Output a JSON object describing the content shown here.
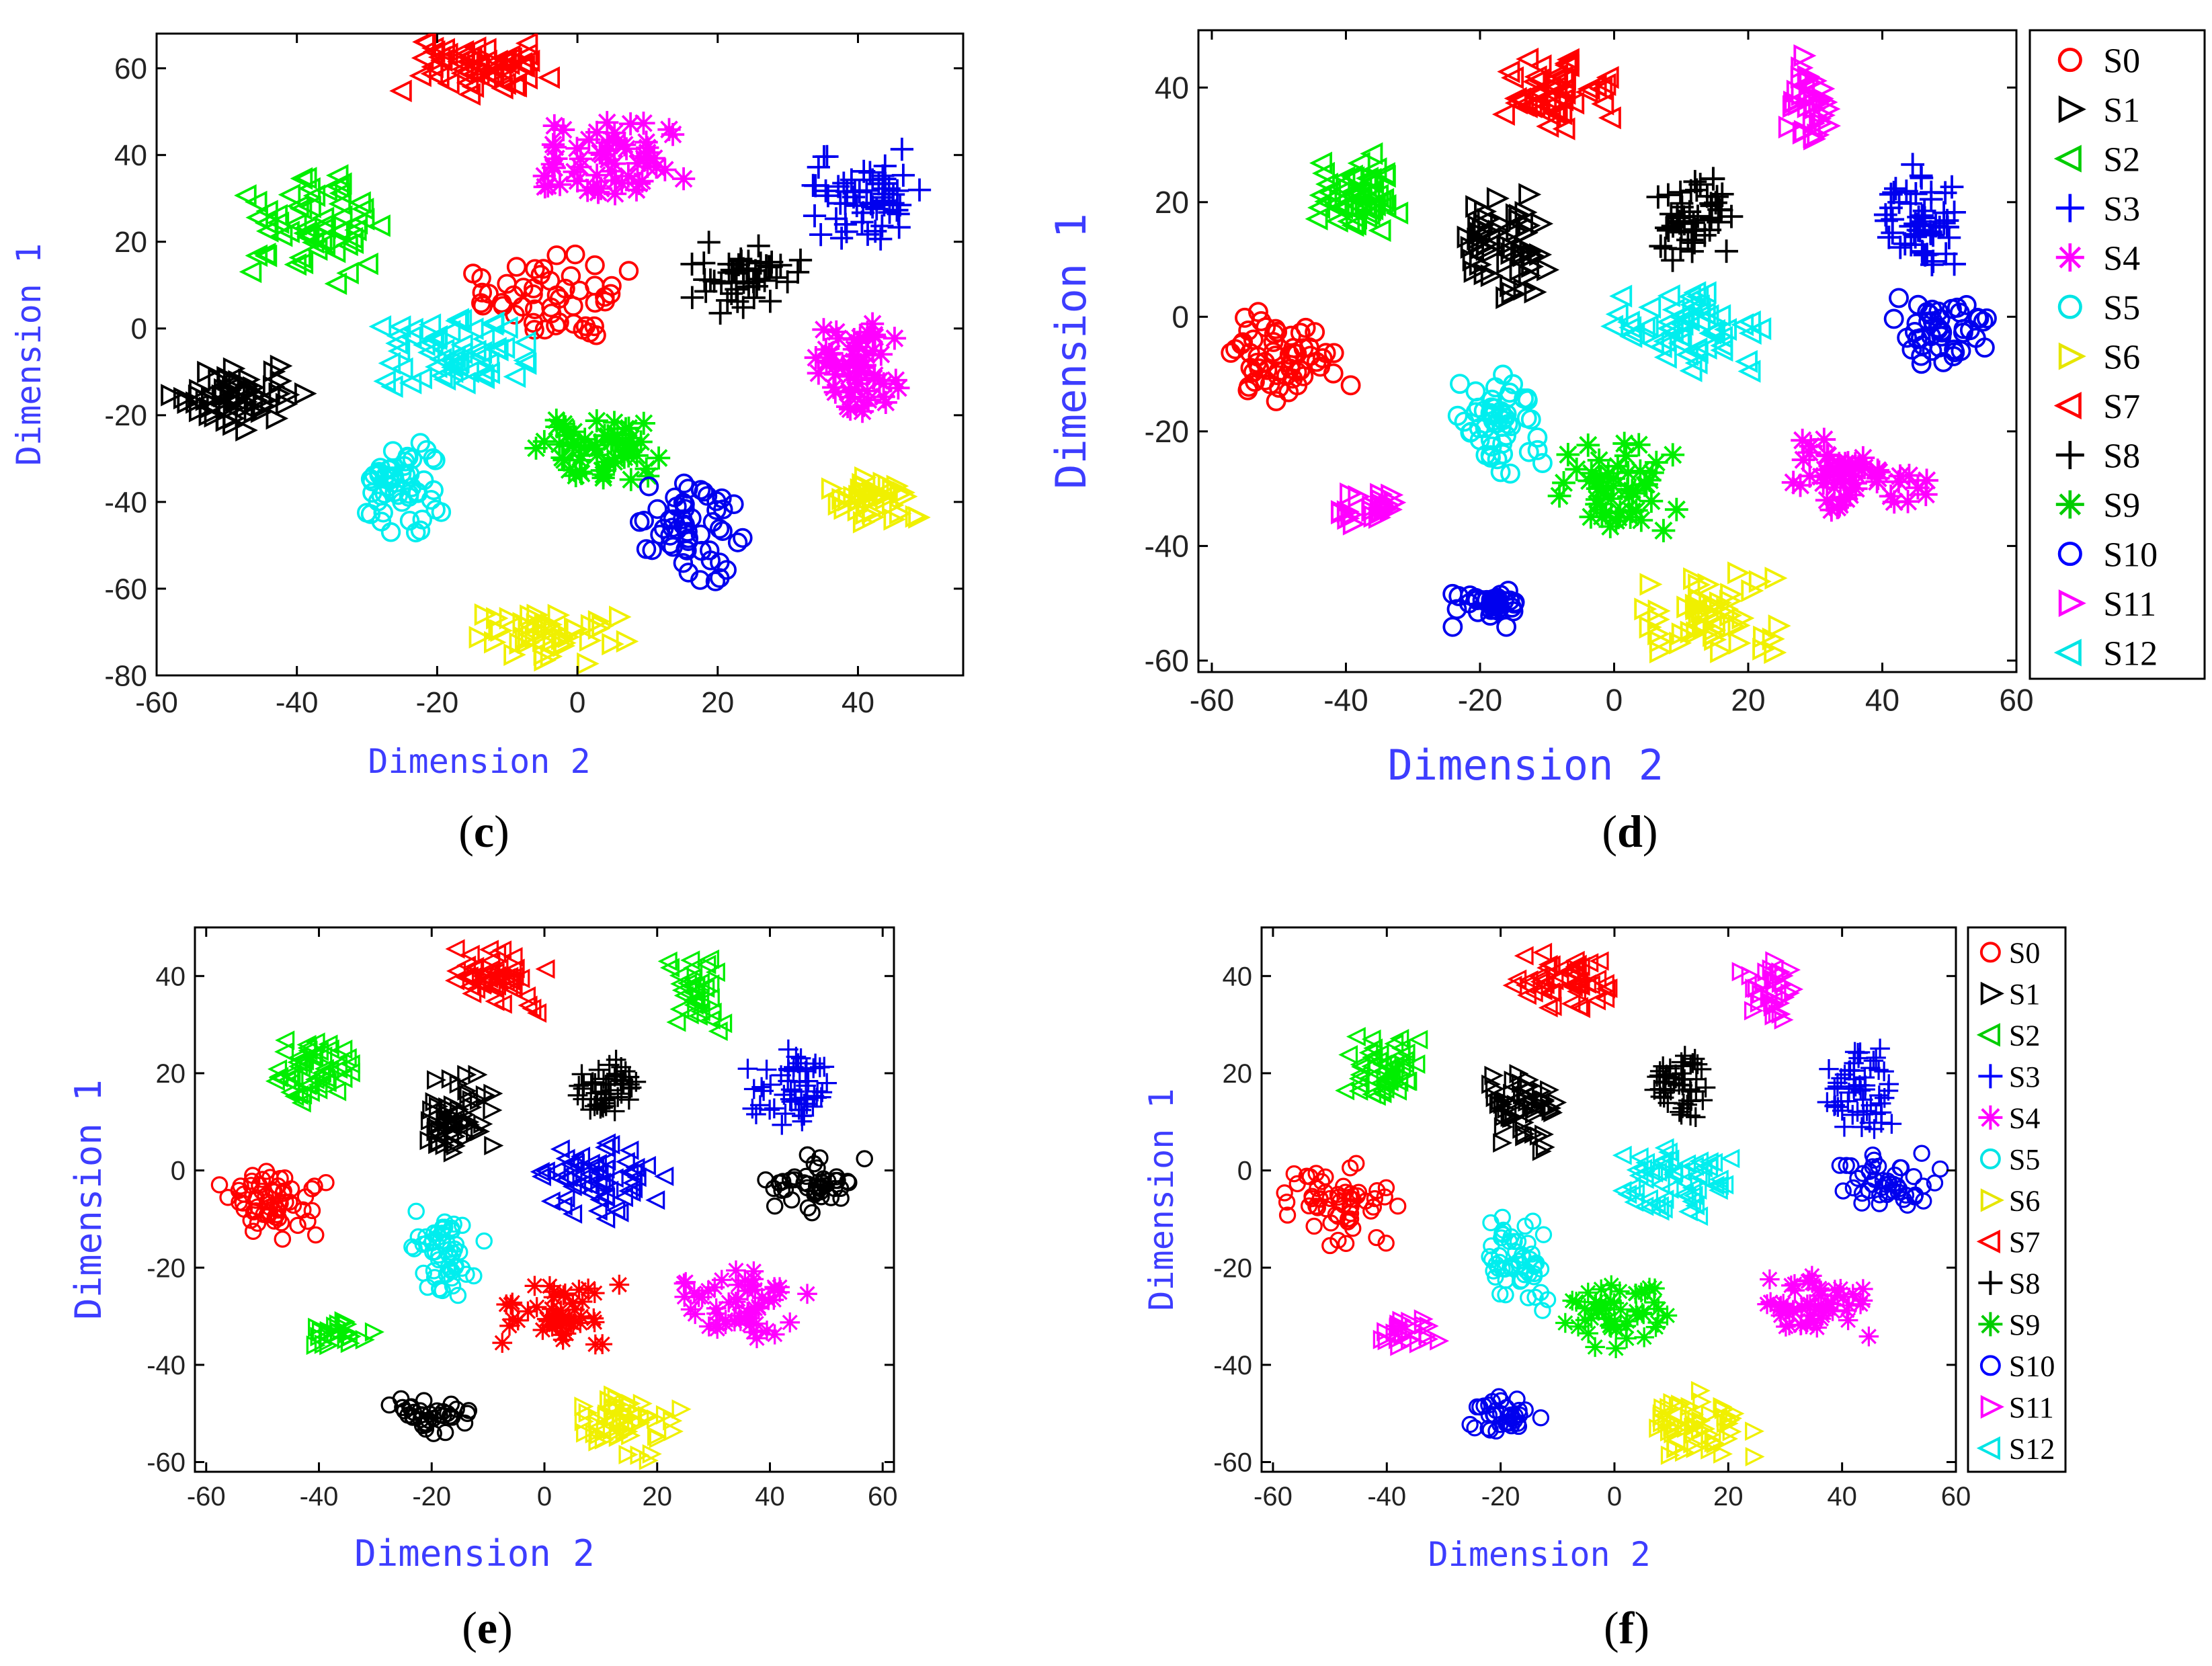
{
  "colors": {
    "red": "#ff0000",
    "black": "#000000",
    "green": "#00ee00",
    "blue": "#0000ee",
    "magenta": "#ff00ff",
    "cyan": "#00eeee",
    "yellow": "#f0f000"
  },
  "legend_entries": [
    {
      "label": "S0",
      "marker": "circle",
      "color": "#ff0000"
    },
    {
      "label": "S1",
      "marker": "triangle-right",
      "color": "#000000"
    },
    {
      "label": "S2",
      "marker": "triangle-left",
      "color": "#00cc00"
    },
    {
      "label": "S3",
      "marker": "plus",
      "color": "#0000ff"
    },
    {
      "label": "S4",
      "marker": "star",
      "color": "#ff00ff"
    },
    {
      "label": "S5",
      "marker": "circle",
      "color": "#00e5e5"
    },
    {
      "label": "S6",
      "marker": "triangle-right",
      "color": "#e6e600"
    },
    {
      "label": "S7",
      "marker": "triangle-left",
      "color": "#ff0000"
    },
    {
      "label": "S8",
      "marker": "plus",
      "color": "#000000"
    },
    {
      "label": "S9",
      "marker": "star",
      "color": "#00cc00"
    },
    {
      "label": "S10",
      "marker": "circle",
      "color": "#0000ff"
    },
    {
      "label": "S11",
      "marker": "triangle-right",
      "color": "#ff00ff"
    },
    {
      "label": "S12",
      "marker": "triangle-left",
      "color": "#00e5e5"
    }
  ],
  "chart_data": [
    {
      "panel": "c",
      "caption_letter": "c",
      "type": "scatter",
      "xlabel": "Dimension 2",
      "ylabel": "Dimension 1",
      "xlim": [
        -60,
        55
      ],
      "ylim": [
        -80,
        68
      ],
      "xticks": [
        -60,
        -40,
        -20,
        0,
        20,
        40
      ],
      "yticks": [
        60,
        40,
        20,
        0,
        -20,
        -40,
        -60,
        -80
      ],
      "legend": false,
      "clusters": [
        {
          "class": "S7",
          "marker": "triangle-left",
          "color": "red",
          "x": [
            -28,
            0
          ],
          "y": [
            53,
            67
          ],
          "n": 60
        },
        {
          "class": "S4",
          "marker": "star",
          "color": "magenta",
          "x": [
            -9,
            17
          ],
          "y": [
            28,
            50
          ],
          "n": 60
        },
        {
          "class": "S2",
          "marker": "triangle-left",
          "color": "green",
          "x": [
            -50,
            -27
          ],
          "y": [
            10,
            38
          ],
          "n": 60
        },
        {
          "class": "S3",
          "marker": "plus",
          "color": "blue",
          "x": [
            33,
            50
          ],
          "y": [
            18,
            43
          ],
          "n": 60
        },
        {
          "class": "S8",
          "marker": "plus",
          "color": "black",
          "x": [
            15,
            33
          ],
          "y": [
            2,
            22
          ],
          "n": 50
        },
        {
          "class": "S0",
          "marker": "circle",
          "color": "red",
          "x": [
            -16,
            8
          ],
          "y": [
            -3,
            19
          ],
          "n": 50
        },
        {
          "class": "S5",
          "marker": "triangle-left",
          "color": "cyan",
          "x": [
            -31,
            -6
          ],
          "y": [
            -15,
            5
          ],
          "n": 60
        },
        {
          "class": "S1",
          "marker": "triangle-right",
          "color": "black",
          "x": [
            -59,
            -38
          ],
          "y": [
            -24,
            -8
          ],
          "n": 60
        },
        {
          "class": "S4",
          "marker": "star",
          "color": "magenta",
          "x": [
            33,
            47
          ],
          "y": [
            -22,
            3
          ],
          "n": 55
        },
        {
          "class": "S5",
          "marker": "circle",
          "color": "cyan",
          "x": [
            -32,
            -18
          ],
          "y": [
            -49,
            -25
          ],
          "n": 55
        },
        {
          "class": "S9",
          "marker": "star",
          "color": "green",
          "x": [
            -8,
            12
          ],
          "y": [
            -37,
            -19
          ],
          "n": 55
        },
        {
          "class": "S10",
          "marker": "circle",
          "color": "blue",
          "x": [
            6,
            25
          ],
          "y": [
            -62,
            -32
          ],
          "n": 55
        },
        {
          "class": "S6",
          "marker": "triangle-right",
          "color": "yellow",
          "x": [
            35,
            49
          ],
          "y": [
            -45,
            -34
          ],
          "n": 40
        },
        {
          "class": "S6",
          "marker": "triangle-right",
          "color": "yellow",
          "x": [
            -15,
            8
          ],
          "y": [
            -78,
            -64
          ],
          "n": 45
        }
      ]
    },
    {
      "panel": "d",
      "caption_letter": "d",
      "type": "scatter",
      "xlabel": "Dimension 2",
      "ylabel": "Dimension 1",
      "xlim": [
        -62,
        60
      ],
      "ylim": [
        -62,
        50
      ],
      "xticks": [
        -60,
        -40,
        -20,
        0,
        20,
        40,
        60
      ],
      "yticks": [
        40,
        20,
        0,
        -20,
        -40,
        -60
      ],
      "legend": true,
      "clusters": [
        {
          "class": "S7",
          "marker": "triangle-left",
          "color": "red",
          "x": [
            -18,
            2
          ],
          "y": [
            32,
            46
          ],
          "n": 55
        },
        {
          "class": "S11",
          "marker": "triangle-right",
          "color": "magenta",
          "x": [
            25,
            33
          ],
          "y": [
            28,
            46
          ],
          "n": 35
        },
        {
          "class": "S2",
          "marker": "triangle-left",
          "color": "green",
          "x": [
            -45,
            -32
          ],
          "y": [
            13,
            29
          ],
          "n": 55
        },
        {
          "class": "S1",
          "marker": "triangle-right",
          "color": "black",
          "x": [
            -23,
            -8
          ],
          "y": [
            2,
            22
          ],
          "n": 55
        },
        {
          "class": "S8",
          "marker": "plus",
          "color": "black",
          "x": [
            6,
            18
          ],
          "y": [
            9,
            26
          ],
          "n": 50
        },
        {
          "class": "S3",
          "marker": "plus",
          "color": "blue",
          "x": [
            39,
            52
          ],
          "y": [
            8,
            27
          ],
          "n": 55
        },
        {
          "class": "S0",
          "marker": "circle",
          "color": "red",
          "x": [
            -60,
            -38
          ],
          "y": [
            -16,
            2
          ],
          "n": 60
        },
        {
          "class": "S12",
          "marker": "triangle-left",
          "color": "cyan",
          "x": [
            -2,
            25
          ],
          "y": [
            -11,
            6
          ],
          "n": 60
        },
        {
          "class": "S10",
          "marker": "circle",
          "color": "blue",
          "x": [
            39,
            58
          ],
          "y": [
            -9,
            4
          ],
          "n": 45
        },
        {
          "class": "S5",
          "marker": "circle",
          "color": "cyan",
          "x": [
            -24,
            -10
          ],
          "y": [
            -29,
            -8
          ],
          "n": 55
        },
        {
          "class": "S9",
          "marker": "star",
          "color": "green",
          "x": [
            -9,
            10
          ],
          "y": [
            -38,
            -21
          ],
          "n": 50
        },
        {
          "class": "S4",
          "marker": "star",
          "color": "magenta",
          "x": [
            25,
            47
          ],
          "y": [
            -35,
            -20
          ],
          "n": 55
        },
        {
          "class": "S11",
          "marker": "triangle-right",
          "color": "magenta",
          "x": [
            -42,
            -30
          ],
          "y": [
            -37,
            -30
          ],
          "n": 25
        },
        {
          "class": "S10",
          "marker": "circle",
          "color": "blue",
          "x": [
            -26,
            -12
          ],
          "y": [
            -55,
            -46
          ],
          "n": 35
        },
        {
          "class": "S6",
          "marker": "triangle-right",
          "color": "yellow",
          "x": [
            3,
            25
          ],
          "y": [
            -60,
            -44
          ],
          "n": 55
        }
      ]
    },
    {
      "panel": "e",
      "caption_letter": "e",
      "type": "scatter",
      "xlabel": "Dimension 2",
      "ylabel": "Dimension 1",
      "xlim": [
        -62,
        62
      ],
      "ylim": [
        -62,
        50
      ],
      "xticks": [
        -60,
        -40,
        -20,
        0,
        20,
        40,
        60
      ],
      "yticks": [
        40,
        20,
        0,
        -20,
        -40,
        -60
      ],
      "legend": false,
      "clusters": [
        {
          "class": "S7",
          "marker": "triangle-left",
          "color": "red",
          "x": [
            -18,
            2
          ],
          "y": [
            32,
            46
          ],
          "n": 55
        },
        {
          "class": "S2",
          "marker": "triangle-left",
          "color": "green",
          "x": [
            21,
            33
          ],
          "y": [
            28,
            46
          ],
          "n": 35
        },
        {
          "class": "S2",
          "marker": "triangle-left",
          "color": "green",
          "x": [
            -48,
            -33
          ],
          "y": [
            13,
            29
          ],
          "n": 55
        },
        {
          "class": "S1",
          "marker": "triangle-right",
          "color": "black",
          "x": [
            -23,
            -8
          ],
          "y": [
            2,
            22
          ],
          "n": 55
        },
        {
          "class": "S8",
          "marker": "plus",
          "color": "black",
          "x": [
            4,
            18
          ],
          "y": [
            9,
            26
          ],
          "n": 50
        },
        {
          "class": "S3",
          "marker": "plus",
          "color": "blue",
          "x": [
            36,
            52
          ],
          "y": [
            8,
            27
          ],
          "n": 55
        },
        {
          "class": "S0",
          "marker": "circle",
          "color": "red",
          "x": [
            -60,
            -38
          ],
          "y": [
            -16,
            2
          ],
          "n": 60
        },
        {
          "class": "S12",
          "marker": "triangle-left",
          "color": "blue",
          "x": [
            -4,
            22
          ],
          "y": [
            -11,
            6
          ],
          "n": 60
        },
        {
          "class": "S10",
          "marker": "circle",
          "color": "black",
          "x": [
            38,
            58
          ],
          "y": [
            -9,
            4
          ],
          "n": 45
        },
        {
          "class": "S5",
          "marker": "circle",
          "color": "cyan",
          "x": [
            -25,
            -10
          ],
          "y": [
            -29,
            -8
          ],
          "n": 55
        },
        {
          "class": "S9",
          "marker": "star",
          "color": "red",
          "x": [
            -9,
            14
          ],
          "y": [
            -38,
            -21
          ],
          "n": 50
        },
        {
          "class": "S4",
          "marker": "star",
          "color": "magenta",
          "x": [
            24,
            48
          ],
          "y": [
            -35,
            -20
          ],
          "n": 55
        },
        {
          "class": "S11",
          "marker": "triangle-right",
          "color": "green",
          "x": [
            -44,
            -30
          ],
          "y": [
            -37,
            -30
          ],
          "n": 25
        },
        {
          "class": "S10",
          "marker": "circle",
          "color": "black",
          "x": [
            -28,
            -12
          ],
          "y": [
            -55,
            -46
          ],
          "n": 35
        },
        {
          "class": "S6",
          "marker": "triangle-right",
          "color": "yellow",
          "x": [
            3,
            25
          ],
          "y": [
            -60,
            -44
          ],
          "n": 55
        }
      ]
    },
    {
      "panel": "f",
      "caption_letter": "f",
      "type": "scatter",
      "xlabel": "Dimension 2",
      "ylabel": "Dimension 1",
      "xlim": [
        -62,
        60
      ],
      "ylim": [
        -62,
        50
      ],
      "xticks": [
        -60,
        -40,
        -20,
        0,
        20,
        40,
        60
      ],
      "yticks": [
        40,
        20,
        0,
        -20,
        -40,
        -60
      ],
      "legend": true,
      "clusters": [
        {
          "class": "S7",
          "marker": "triangle-left",
          "color": "red",
          "x": [
            -18,
            2
          ],
          "y": [
            32,
            46
          ],
          "n": 55
        },
        {
          "class": "S11",
          "marker": "triangle-right",
          "color": "magenta",
          "x": [
            21,
            33
          ],
          "y": [
            28,
            46
          ],
          "n": 35
        },
        {
          "class": "S2",
          "marker": "triangle-left",
          "color": "green",
          "x": [
            -48,
            -33
          ],
          "y": [
            13,
            29
          ],
          "n": 55
        },
        {
          "class": "S1",
          "marker": "triangle-right",
          "color": "black",
          "x": [
            -23,
            -8
          ],
          "y": [
            2,
            22
          ],
          "n": 55
        },
        {
          "class": "S8",
          "marker": "plus",
          "color": "black",
          "x": [
            6,
            18
          ],
          "y": [
            9,
            26
          ],
          "n": 50
        },
        {
          "class": "S3",
          "marker": "plus",
          "color": "blue",
          "x": [
            35,
            52
          ],
          "y": [
            8,
            27
          ],
          "n": 55
        },
        {
          "class": "S0",
          "marker": "circle",
          "color": "red",
          "x": [
            -60,
            -38
          ],
          "y": [
            -16,
            2
          ],
          "n": 60
        },
        {
          "class": "S12",
          "marker": "triangle-left",
          "color": "cyan",
          "x": [
            -2,
            25
          ],
          "y": [
            -11,
            6
          ],
          "n": 60
        },
        {
          "class": "S10",
          "marker": "circle",
          "color": "blue",
          "x": [
            38,
            58
          ],
          "y": [
            -9,
            4
          ],
          "n": 45
        },
        {
          "class": "S5",
          "marker": "circle",
          "color": "cyan",
          "x": [
            -25,
            -10
          ],
          "y": [
            -29,
            -8
          ],
          "n": 55
        },
        {
          "class": "S9",
          "marker": "star",
          "color": "green",
          "x": [
            -9,
            12
          ],
          "y": [
            -38,
            -21
          ],
          "n": 50
        },
        {
          "class": "S4",
          "marker": "star",
          "color": "magenta",
          "x": [
            24,
            48
          ],
          "y": [
            -35,
            -20
          ],
          "n": 55
        },
        {
          "class": "S11",
          "marker": "triangle-right",
          "color": "magenta",
          "x": [
            -44,
            -30
          ],
          "y": [
            -37,
            -30
          ],
          "n": 25
        },
        {
          "class": "S10",
          "marker": "circle",
          "color": "blue",
          "x": [
            -28,
            -12
          ],
          "y": [
            -55,
            -46
          ],
          "n": 35
        },
        {
          "class": "S6",
          "marker": "triangle-right",
          "color": "yellow",
          "x": [
            3,
            25
          ],
          "y": [
            -60,
            -44
          ],
          "n": 55
        }
      ]
    }
  ]
}
